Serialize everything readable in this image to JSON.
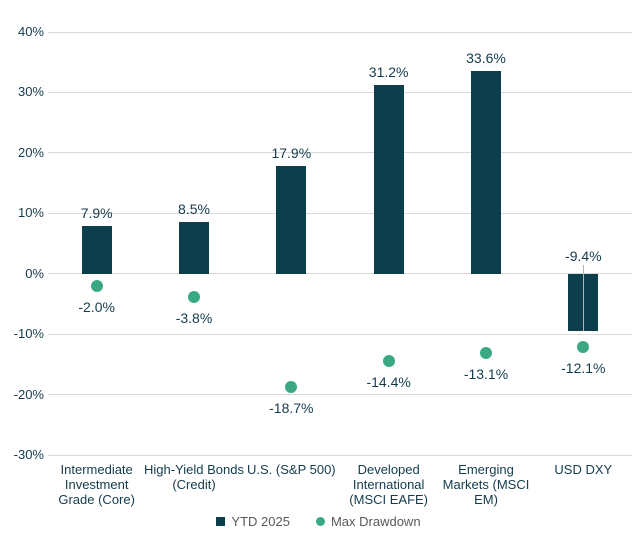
{
  "chart_data": {
    "type": "bar",
    "title": "",
    "xlabel": "",
    "ylabel": "",
    "categories": [
      "Intermediate Investment Grade (Core)",
      "High-Yield Bonds (Credit)",
      "U.S. (S&P 500)",
      "Developed International (MSCI EAFE)",
      "Emerging Markets (MSCI EM)",
      "USD DXY"
    ],
    "category_labels_wrapped": [
      "Intermediate\nInvestment\nGrade (Core)",
      "High-Yield Bonds\n(Credit)",
      "U.S. (S&P 500)",
      "Developed\nInternational\n(MSCI EAFE)",
      "Emerging\nMarkets (MSCI\nEM)",
      "USD DXY"
    ],
    "series": [
      {
        "name": "YTD 2025",
        "type": "bar",
        "color": "#0d3e4c",
        "values": [
          7.9,
          8.5,
          17.9,
          31.2,
          33.6,
          -9.4
        ],
        "data_labels": [
          "7.9%",
          "8.5%",
          "17.9%",
          "31.2%",
          "33.6%",
          "-9.4%"
        ]
      },
      {
        "name": "Max Drawdown",
        "type": "scatter",
        "color": "#3aa981",
        "values": [
          -2.0,
          -3.8,
          -18.7,
          -14.4,
          -13.1,
          -12.1
        ],
        "data_labels": [
          "-2.0%",
          "-3.8%",
          "-18.7%",
          "-14.4%",
          "-13.1%",
          "-12.1%"
        ]
      }
    ],
    "y_axis": {
      "min": -30,
      "max": 40,
      "step": 10,
      "tick_labels": [
        "40%",
        "30%",
        "20%",
        "10%",
        "0%",
        "-10%",
        "-20%",
        "-30%"
      ]
    },
    "grid": true,
    "legend_position": "bottom-center",
    "annotations": {
      "leader_line_category": "USD DXY"
    }
  },
  "colors": {
    "bar": "#0d3e4c",
    "marker": "#3aa981",
    "label_text": "#143b4d",
    "legend_text": "#595959",
    "gridline": "#d9d9d9",
    "leader_line": "#b3b3b3",
    "background": "#ffffff"
  }
}
